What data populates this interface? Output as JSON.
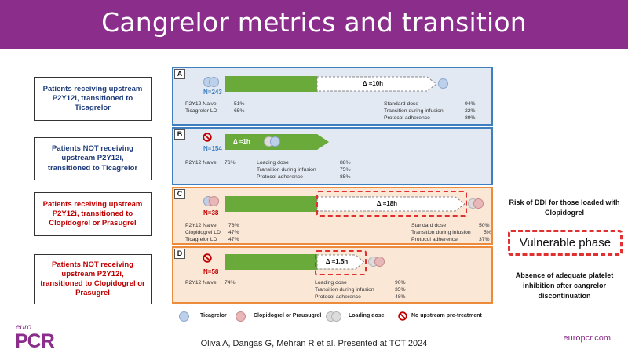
{
  "title": "Cangrelor metrics and transition",
  "left_boxes": [
    {
      "text": "Patients receiving upstream P2Y12i, transitioned to Ticagrelor"
    },
    {
      "text": "Patients NOT receiving upstream P2Y12i, transitioned to Ticagrelor"
    },
    {
      "text": "Patients receiving upstream P2Y12i, transitioned to Clopidogrel or Prasugrel"
    },
    {
      "text": "Patients NOT receiving upstream P2Y12i, transitioned to Clopidogrel or Prasugrel"
    }
  ],
  "panels": [
    {
      "letter": "A",
      "n": "N=243",
      "delta": "Δ ≈10h",
      "left_stats": [
        {
          "label": "P2Y12 Naive",
          "value": "51%"
        },
        {
          "label": "Ticagrelor LD",
          "value": "65%"
        }
      ],
      "right_stats": [
        {
          "label": "Standard dose",
          "value": "94%"
        },
        {
          "label": "Transition during infusion",
          "value": "22%"
        },
        {
          "label": "Protocol adherence",
          "value": "89%"
        }
      ]
    },
    {
      "letter": "B",
      "n": "N=154",
      "delta": "Δ ≈1h",
      "left_stats": [
        {
          "label": "P2Y12 Naive",
          "value": "76%"
        }
      ],
      "right_stats": [
        {
          "label": "Loading dose",
          "value": "88%"
        },
        {
          "label": "Transition during infusion",
          "value": "75%"
        },
        {
          "label": "Protocol adherence",
          "value": "85%"
        }
      ]
    },
    {
      "letter": "C",
      "n": "N=38",
      "delta": "Δ ≈18h",
      "left_stats": [
        {
          "label": "P2Y12 Naive",
          "value": "76%"
        },
        {
          "label": "Clopidogrel LD",
          "value": "47%"
        },
        {
          "label": "Ticagrelor LD",
          "value": "47%"
        }
      ],
      "right_stats": [
        {
          "label": "Standard dose",
          "value": "50%"
        },
        {
          "label": "Transition during infusion",
          "value": "5%"
        },
        {
          "label": "Protocol adherence",
          "value": "37%"
        }
      ]
    },
    {
      "letter": "D",
      "n": "N=58",
      "delta": "Δ ≈1.5h",
      "left_stats": [
        {
          "label": "P2Y12 Naive",
          "value": "74%"
        }
      ],
      "right_stats": [
        {
          "label": "Loading dose",
          "value": "90%"
        },
        {
          "label": "Transition during infusion",
          "value": "35%"
        },
        {
          "label": "Protocol adherence",
          "value": "48%"
        }
      ]
    }
  ],
  "legend": [
    {
      "icon": "blue-circle",
      "label": "Ticagrelor"
    },
    {
      "icon": "pink-circle",
      "label": "Clopidogrel or Prausugrel"
    },
    {
      "icon": "grey-circles",
      "label": "Loading dose"
    },
    {
      "icon": "no-symbol",
      "label": "No upstream pre-treatment"
    }
  ],
  "right_panel": {
    "risk_text": "Risk of DDI for those loaded with Clopidogrel",
    "vulnerable_label": "Vulnerable phase",
    "absence_text": "Absence of adequate platelet inhibition after cangrelor discontinuation"
  },
  "footer": {
    "logo_top": "euro",
    "logo_main": "PCR",
    "citation": "Oliva A, Dangas G, Mehran R et al. Presented at TCT 2024",
    "site": "europcr.com"
  },
  "colors": {
    "header": "#8a2d8b",
    "accent_red": "#c00000",
    "accent_blue": "#1f3d7a",
    "arrow_green": "#6aaa3a"
  }
}
